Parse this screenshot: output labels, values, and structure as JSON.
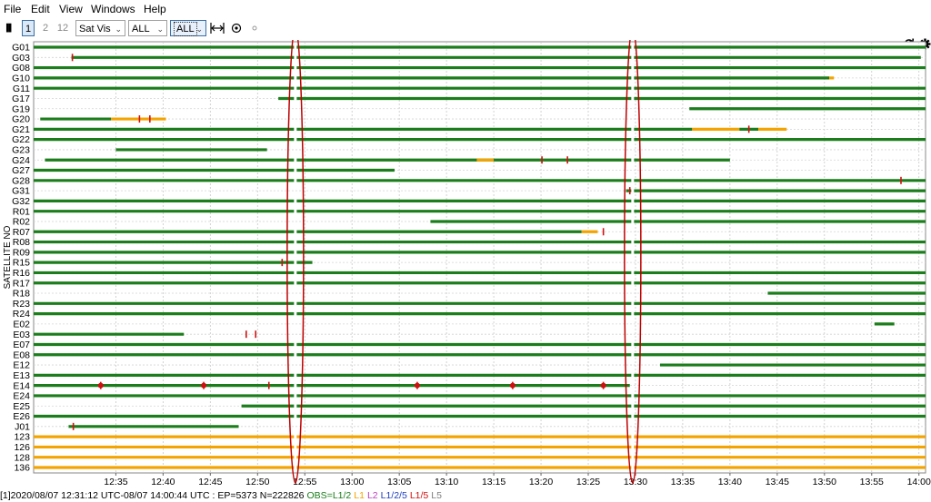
{
  "menu": [
    "File",
    "Edit",
    "View",
    "Windows",
    "Help"
  ],
  "toolbar": {
    "pause": "▐▌",
    "btn1": "1",
    "btn2": "2",
    "btn12": "12",
    "plot_type": "Sat Vis",
    "sat_sys": "ALL",
    "freq": "ALL",
    "fit_icon": "horizontal-fit-icon",
    "center_icon": "target-icon",
    "small_icon": "point-icon",
    "close_icon": "close-icon",
    "reload_icon": "reload-icon",
    "settings_icon": "gear-icon"
  },
  "chart_data": {
    "type": "timeline",
    "ylabel": "SATELLITE NO",
    "satellites": [
      "G01",
      "G03",
      "G08",
      "G10",
      "G11",
      "G17",
      "G19",
      "G20",
      "G21",
      "G22",
      "G23",
      "G24",
      "G27",
      "G28",
      "G31",
      "G32",
      "R01",
      "R02",
      "R07",
      "R08",
      "R09",
      "R15",
      "R16",
      "R17",
      "R18",
      "R23",
      "R24",
      "E02",
      "E03",
      "E07",
      "E08",
      "E12",
      "E13",
      "E14",
      "E24",
      "E25",
      "E26",
      "J01",
      "123",
      "126",
      "128",
      "136"
    ],
    "x_ticks": [
      "12:35",
      "12:40",
      "12:45",
      "12:50",
      "12:55",
      "13:00",
      "13:05",
      "13:10",
      "13:15",
      "13:20",
      "13:25",
      "13:30",
      "13:35",
      "13:40",
      "13:45",
      "13:50",
      "13:55",
      "14:00"
    ],
    "x_range_min": [
      746.3,
      840.7
    ],
    "colors": {
      "l12": "#1b7d1b",
      "l1": "#f4a400",
      "slip": "#d01010",
      "gap": "#a0a0a0",
      "ellipse": "#c00000"
    },
    "highlight_min": [
      774.0,
      809.7
    ]
  },
  "status": {
    "prefix": "[1]2020/08/07 12:31:12 UTC-08/07 14:00:44 UTC : EP=5373 N=222826",
    "obs": "OBS=",
    "l12": "L1/2",
    "l1": "L1",
    "l2": "L2",
    "l125": "L1/2/5",
    "l15": "L1/5",
    "l5": "L5"
  }
}
